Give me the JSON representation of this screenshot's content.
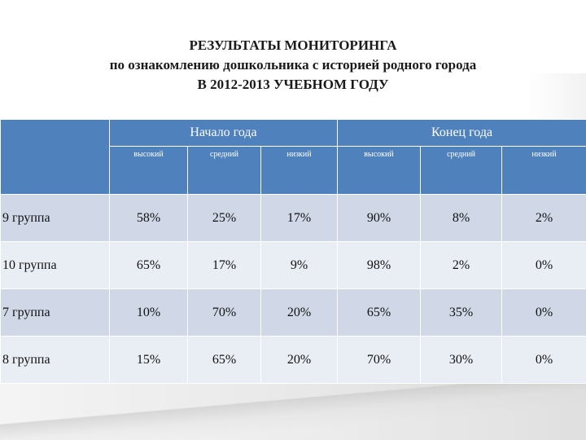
{
  "title": {
    "line1": "РЕЗУЛЬТАТЫ  МОНИТОРИНГА",
    "line2": "по ознакомлению дошкольника с историей родного города",
    "line3": "В 2012-2013 УЧЕБНОМ ГОДУ"
  },
  "table": {
    "groups": [
      "Начало года",
      "Конец года"
    ],
    "subheaders": [
      "высокий",
      "средний",
      "низкий",
      "высокий",
      "средний",
      "низкий"
    ],
    "rows": [
      {
        "label": "9 группа",
        "values": [
          "58%",
          "25%",
          "17%",
          "90%",
          "8%",
          "2%"
        ]
      },
      {
        "label": "10 группа",
        "values": [
          "65%",
          "17%",
          "9%",
          "98%",
          "2%",
          "0%"
        ]
      },
      {
        "label": "7 группа",
        "values": [
          "10%",
          "70%",
          "20%",
          "65%",
          "35%",
          "0%"
        ]
      },
      {
        "label": "8 группа",
        "values": [
          "15%",
          "65%",
          "20%",
          "70%",
          "30%",
          "0%"
        ]
      }
    ]
  }
}
